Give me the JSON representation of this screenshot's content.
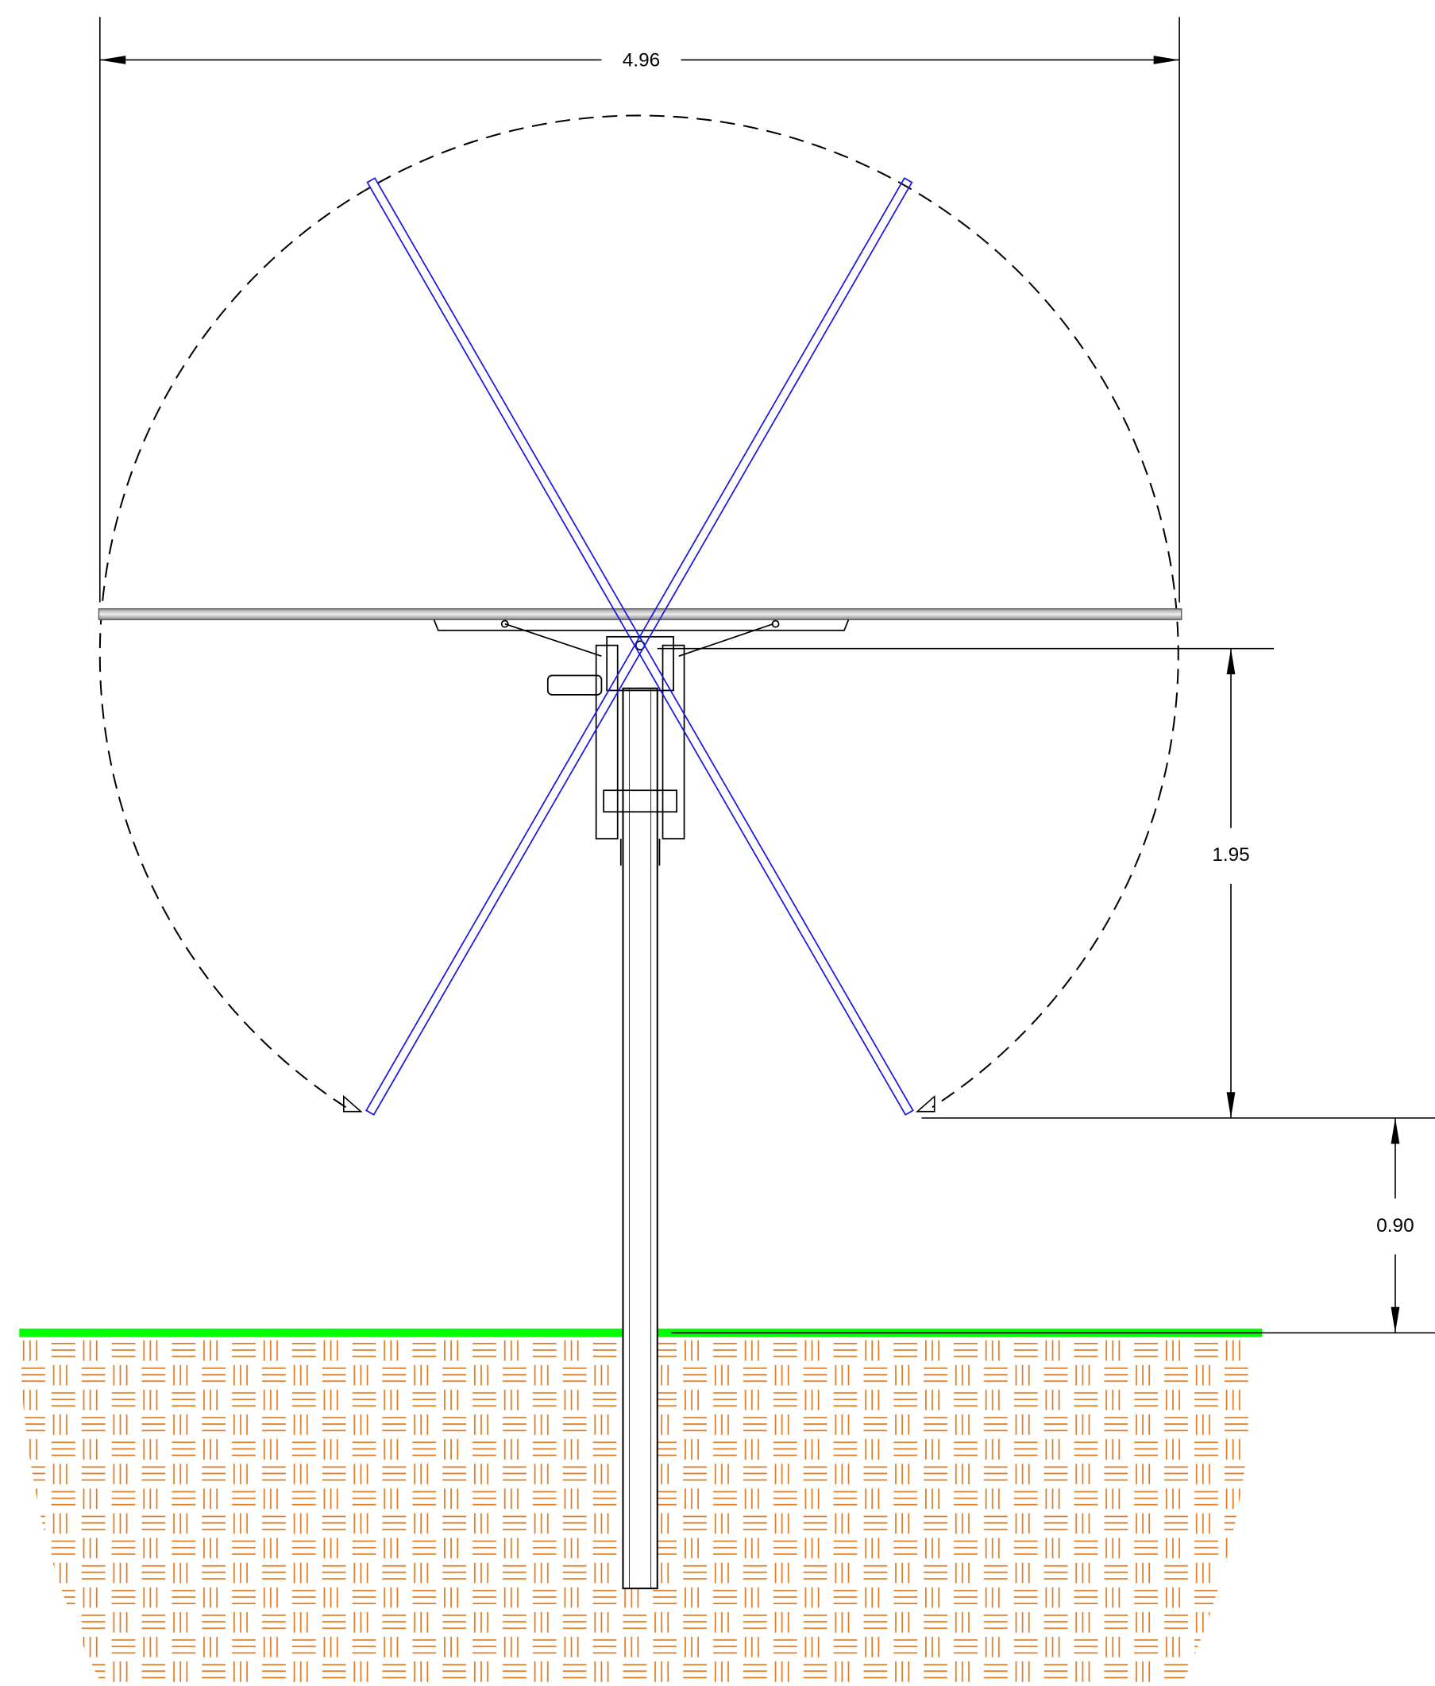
{
  "dimensions": {
    "width": "4.96",
    "height_above": "1.95",
    "clearance": "0.90"
  }
}
